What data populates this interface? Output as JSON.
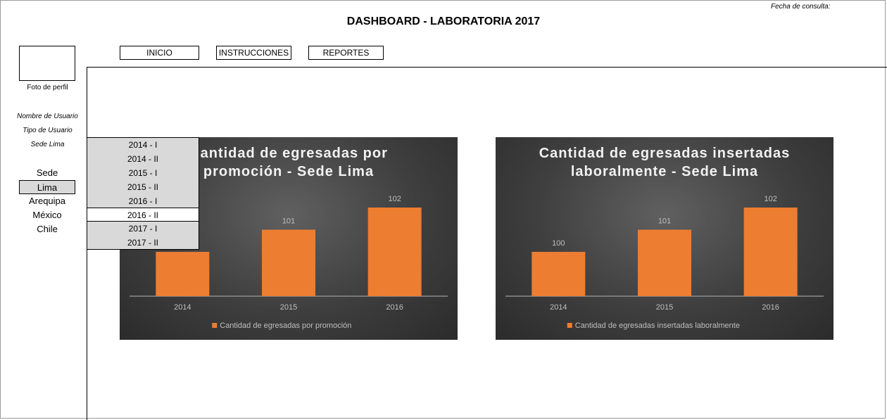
{
  "header": {
    "title": "DASHBOARD - LABORATORIA 2017",
    "fecha_label": "Fecha de consulta:"
  },
  "nav": {
    "inicio": "INICIO",
    "instrucciones": "INSTRUCCIONES",
    "reportes": "REPORTES"
  },
  "profile": {
    "photo_label": "Foto de perfil",
    "user_name": "Nombre de Usuario",
    "user_type": "Tipo de Usuario",
    "sede": "Sede Lima"
  },
  "sede_list": {
    "heading": "Sede",
    "items": [
      "Lima",
      "Arequipa",
      "México",
      "Chile"
    ],
    "selected": "Lima"
  },
  "promo_list": {
    "items": [
      "2014 - I",
      "2014 - II",
      "2015 - I",
      "2015 - II",
      "2016 - I",
      "2016 - II",
      "2017 - I",
      "2017 - II"
    ],
    "selected": "2016 - II"
  },
  "colors": {
    "bar": "#ed7d31",
    "chart_text": "#bfbfbf"
  },
  "chart_data": [
    {
      "type": "bar",
      "title_lines": [
        "Cantidad de egresadas por",
        "promoción - Sede Lima"
      ],
      "categories": [
        "2014",
        "2015",
        "2016"
      ],
      "series": [
        {
          "name": "Cantidad de egresadas por promoción",
          "values": [
            100,
            101,
            102
          ]
        }
      ],
      "ylim": [
        98,
        103
      ],
      "legend": "bottom",
      "grid": false
    },
    {
      "type": "bar",
      "title_lines": [
        "Cantidad de egresadas insertadas",
        "laboralmente - Sede Lima"
      ],
      "categories": [
        "2014",
        "2015",
        "2016"
      ],
      "series": [
        {
          "name": "Cantidad de egresadas insertadas laboralmente",
          "values": [
            100,
            101,
            102
          ]
        }
      ],
      "ylim": [
        98,
        103
      ],
      "legend": "bottom",
      "grid": false
    }
  ]
}
